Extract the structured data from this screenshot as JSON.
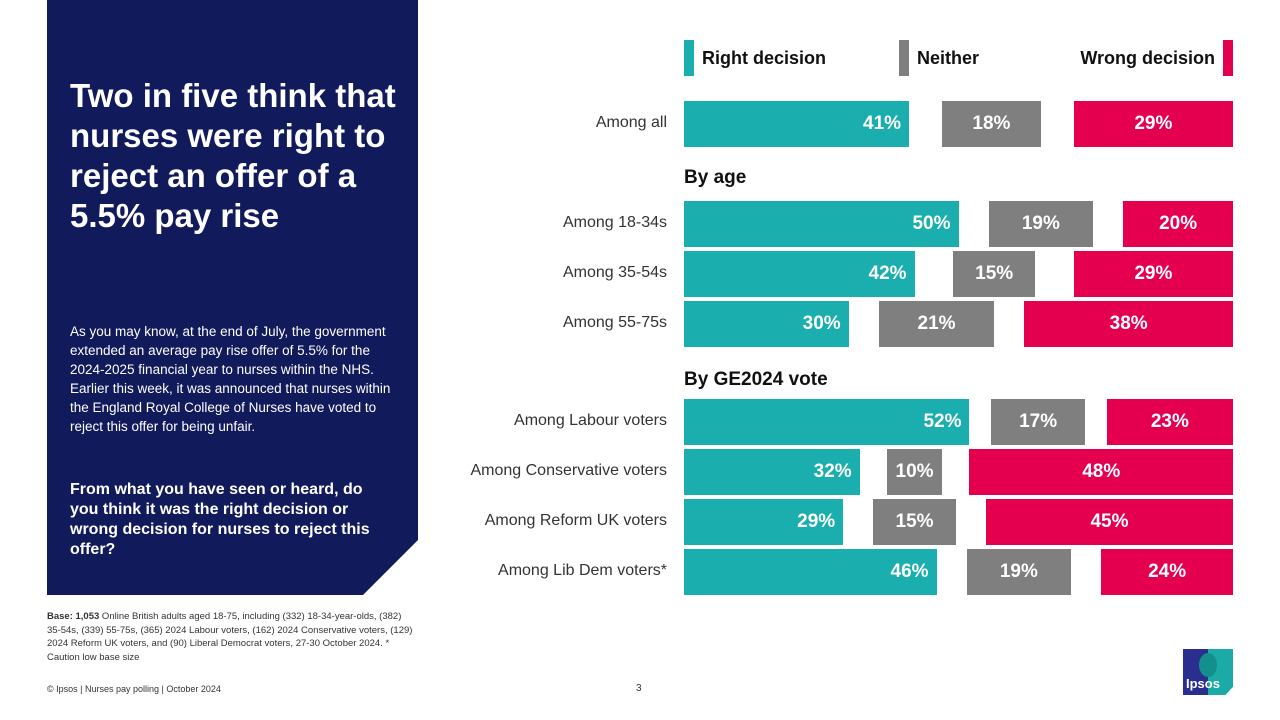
{
  "panel": {
    "title": "Two in five think that nurses were right to reject an offer of a 5.5% pay rise",
    "intro": "As you may know, at the end of July, the government extended an average pay rise offer of 5.5% for the 2024-2025 financial year to nurses within the NHS. Earlier this week, it was announced that nurses within the England Royal College of Nurses have voted to reject this offer for being unfair.",
    "question": "From what you have seen or heard, do you think it was the right decision or wrong decision for nurses to reject this offer?"
  },
  "base": {
    "label": "Base: 1,053",
    "text": " Online British adults aged 18-75, including (332) 18-34-year-olds, (382) 35-54s, (339) 55-75s, (365) 2024 Labour voters, (162) 2024 Conservative voters, (129) 2024 Reform UK voters, and (90) Liberal Democrat voters, 27-30 October 2024. * Caution low base size"
  },
  "footer": "© Ipsos | Nurses pay polling | October 2024",
  "page_number": "3",
  "logo_text": "Ipsos",
  "chart_data": {
    "type": "bar",
    "orientation": "horizontal",
    "stacked": false,
    "legend_position": "top",
    "series": [
      {
        "name": "Right decision",
        "color": "#1baeae",
        "values": [
          41,
          50,
          42,
          30,
          52,
          32,
          29,
          46
        ]
      },
      {
        "name": "Neither",
        "color": "#7f7f7f",
        "values": [
          18,
          19,
          15,
          21,
          17,
          10,
          15,
          19
        ]
      },
      {
        "name": "Wrong decision",
        "color": "#e5004f",
        "values": [
          29,
          20,
          29,
          38,
          23,
          48,
          45,
          24
        ]
      }
    ],
    "categories": [
      "Among all",
      "Among 18-34s",
      "Among 35-54s",
      "Among 55-75s",
      "Among Labour voters",
      "Among Conservative voters",
      "Among Reform UK voters",
      "Among Lib Dem voters*"
    ],
    "sections": [
      {
        "title": "By age",
        "before_index": 1
      },
      {
        "title": "By GE2024 vote",
        "before_index": 4
      }
    ],
    "value_suffix": "%"
  }
}
